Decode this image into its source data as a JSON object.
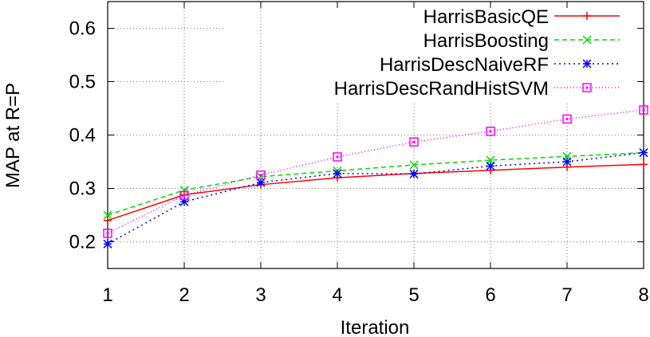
{
  "chart_data": {
    "type": "line",
    "xlabel": "Iteration",
    "ylabel": "MAP at R=P",
    "xlim": [
      1,
      8
    ],
    "ylim": [
      0.15,
      0.65
    ],
    "x": [
      1,
      2,
      3,
      4,
      5,
      6,
      7,
      8
    ],
    "xticks": [
      "1",
      "2",
      "3",
      "4",
      "5",
      "6",
      "7",
      "8"
    ],
    "yticks": [
      "0.2",
      "0.3",
      "0.4",
      "0.5",
      "0.6"
    ],
    "grid": true,
    "legend_position": "top-right",
    "series": [
      {
        "name": "HarrisBasicQE",
        "values": [
          0.24,
          0.288,
          0.307,
          0.32,
          0.328,
          0.334,
          0.34,
          0.345
        ],
        "color": "#ff0000",
        "marker": "plus",
        "line": "solid"
      },
      {
        "name": "HarrisBoosting",
        "values": [
          0.25,
          0.297,
          0.322,
          0.333,
          0.344,
          0.353,
          0.36,
          0.367
        ],
        "color": "#00dd00",
        "marker": "x",
        "line": "dashed"
      },
      {
        "name": "HarrisDescNaiveRF",
        "values": [
          0.196,
          0.275,
          0.311,
          0.328,
          0.327,
          0.342,
          0.35,
          0.367
        ],
        "color": "#0000ff",
        "marker": "star",
        "line": "dotted"
      },
      {
        "name": "HarrisDescRandHistSVM",
        "values": [
          0.216,
          0.287,
          0.325,
          0.359,
          0.387,
          0.407,
          0.43,
          0.447
        ],
        "color": "#ff00ff",
        "marker": "square",
        "line": "fine-dotted"
      }
    ]
  }
}
